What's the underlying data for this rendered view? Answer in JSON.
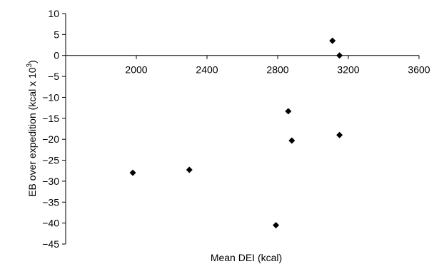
{
  "chart_data": {
    "type": "scatter",
    "title": "",
    "xlabel": "Mean DEI (kcal)",
    "ylabel_main": "EB over expedition (kcal x 10",
    "ylabel_sup": "3",
    "ylabel_end": ")",
    "xlim": [
      1600,
      3600
    ],
    "ylim": [
      -45,
      10
    ],
    "x_ticks": [
      {
        "value": 2000,
        "label": "2000"
      },
      {
        "value": 2400,
        "label": "2400"
      },
      {
        "value": 2800,
        "label": "2800"
      },
      {
        "value": 3200,
        "label": "3200"
      },
      {
        "value": 3600,
        "label": "3600"
      }
    ],
    "y_ticks": [
      {
        "value": 10,
        "label": "10"
      },
      {
        "value": 5,
        "label": "5"
      },
      {
        "value": 0,
        "label": "0"
      },
      {
        "value": -5,
        "label": "−5"
      },
      {
        "value": -10,
        "label": "−10"
      },
      {
        "value": -15,
        "label": "−15"
      },
      {
        "value": -20,
        "label": "−20"
      },
      {
        "value": -25,
        "label": "−25"
      },
      {
        "value": -30,
        "label": "−30"
      },
      {
        "value": -35,
        "label": "−35"
      },
      {
        "value": -40,
        "label": "−40"
      },
      {
        "value": -45,
        "label": "−45"
      }
    ],
    "grid": false,
    "legend": "none",
    "marker": "diamond",
    "marker_color": "#000000",
    "points": [
      {
        "x": 1980,
        "y": -28
      },
      {
        "x": 2300,
        "y": -27.3
      },
      {
        "x": 2790,
        "y": -40.5
      },
      {
        "x": 2860,
        "y": -13.3
      },
      {
        "x": 2880,
        "y": -20.3
      },
      {
        "x": 3110,
        "y": 3.5
      },
      {
        "x": 3150,
        "y": 0
      },
      {
        "x": 3150,
        "y": -19
      }
    ]
  }
}
